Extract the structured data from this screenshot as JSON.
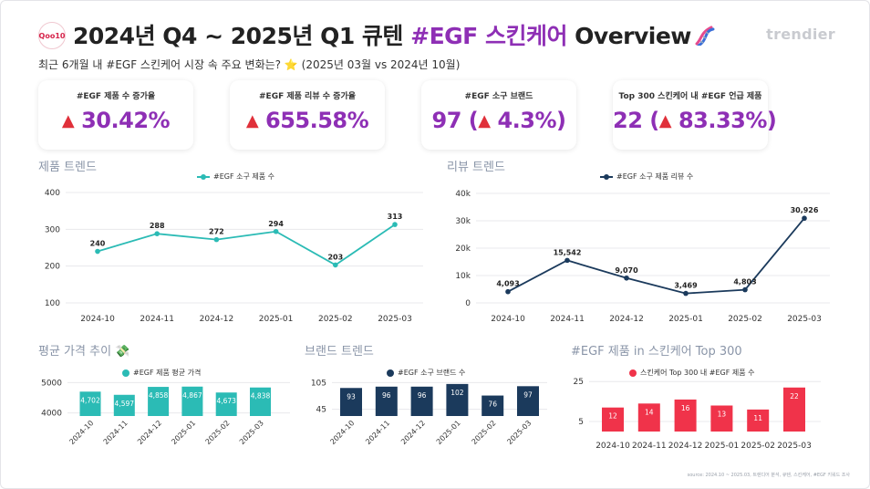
{
  "header": {
    "logo_text": "Qoo10",
    "title_main": "2024년 Q4 ~ 2025년 Q1 큐텐 ",
    "title_accent": "#EGF 스킨케어",
    "title_tail": " Overview",
    "brand": "trendier",
    "subtitle": "최근 6개월 내 #EGF 스킨케어 시장 속 주요 변화는?",
    "subtitle_star": "⭐",
    "subtitle_tail": " (2025년 03월 vs 2024년 10월)"
  },
  "kpis": [
    {
      "label": "#EGF 제품 수 증가율",
      "value": "30.42%"
    },
    {
      "label": "#EGF 제품 리뷰 수 증가율",
      "value": "655.58%"
    },
    {
      "label": "#EGF 소구 브랜드",
      "value_main": "97",
      "value_change": "4.3%"
    },
    {
      "label": "Top 300 스킨케어 내 #EGF 언급 제품",
      "value_main": "22",
      "value_change": "83.33%"
    }
  ],
  "colors": {
    "accent": "#8e2fb5",
    "teal": "#2bbbb5",
    "navy": "#1b3a5c",
    "red": "#f0334a",
    "up": "#e0303a"
  },
  "chart_data": [
    {
      "type": "line",
      "section_title": "제품 트렌드",
      "series": [
        {
          "name": "#EGF 소구 제품 수",
          "values": [
            240,
            288,
            272,
            294,
            203,
            313
          ]
        }
      ],
      "categories": [
        "2024-10",
        "2024-11",
        "2024-12",
        "2025-01",
        "2025-02",
        "2025-03"
      ],
      "ylim": [
        100,
        400
      ],
      "yticks": [
        "100",
        "200",
        "300",
        "400"
      ],
      "grid": true
    },
    {
      "type": "line",
      "section_title": "리뷰 트렌드",
      "series": [
        {
          "name": "#EGF 소구 제품 리뷰 수",
          "values": [
            4093,
            15542,
            9070,
            3469,
            4803,
            30926
          ]
        }
      ],
      "data_labels": [
        "4,093",
        "15,542",
        "9,070",
        "3,469",
        "4,803",
        "30,926"
      ],
      "categories": [
        "2024-10",
        "2024-11",
        "2024-12",
        "2025-01",
        "2025-02",
        "2025-03"
      ],
      "ylim": [
        0,
        40000
      ],
      "yticks": [
        "0",
        "10k",
        "20k",
        "30k",
        "40k"
      ],
      "grid": true
    },
    {
      "type": "bar",
      "section_title": "평균 가격 추이",
      "section_icon": "💸",
      "series": [
        {
          "name": "#EGF 제품 평균 가격",
          "values": [
            4702,
            4597,
            4858,
            4867,
            4673,
            4838
          ]
        }
      ],
      "data_labels": [
        "4,702",
        "4,597",
        "4,858",
        "4,867",
        "4,673",
        "4,838"
      ],
      "categories": [
        "2024-10",
        "2024-11",
        "2024-12",
        "2025-01",
        "2025-02",
        "2025-03"
      ],
      "ylim": [
        3900,
        5100
      ],
      "yticks": [
        "4000",
        "5000"
      ],
      "grid": true
    },
    {
      "type": "bar",
      "section_title": "브랜드 트렌드",
      "series": [
        {
          "name": "#EGF 소구 브랜드 수",
          "values": [
            93,
            96,
            96,
            102,
            76,
            97
          ]
        }
      ],
      "categories": [
        "2024-10",
        "2024-11",
        "2024-12",
        "2025-01",
        "2025-02",
        "2025-03"
      ],
      "ylim": [
        30,
        112
      ],
      "yticks": [
        "45",
        "105"
      ],
      "grid": true
    },
    {
      "type": "bar",
      "section_title": "#EGF 제품 in 스킨케어 Top 300",
      "series": [
        {
          "name": "스킨케어 Top 300 내 #EGF 제품 수",
          "values": [
            12,
            14,
            16,
            13,
            11,
            22
          ]
        }
      ],
      "categories": [
        "2024-10",
        "2024-11",
        "2024-12",
        "2025-01",
        "2025-02",
        "2025-03"
      ],
      "ylim": [
        0,
        26
      ],
      "yticks": [
        "5",
        "25"
      ],
      "grid": true
    }
  ],
  "source": "source: 2024.10 ~ 2025.03, 트렌디어 분석, 큐텐, 스킨케어, #EGF 키워드 조사"
}
